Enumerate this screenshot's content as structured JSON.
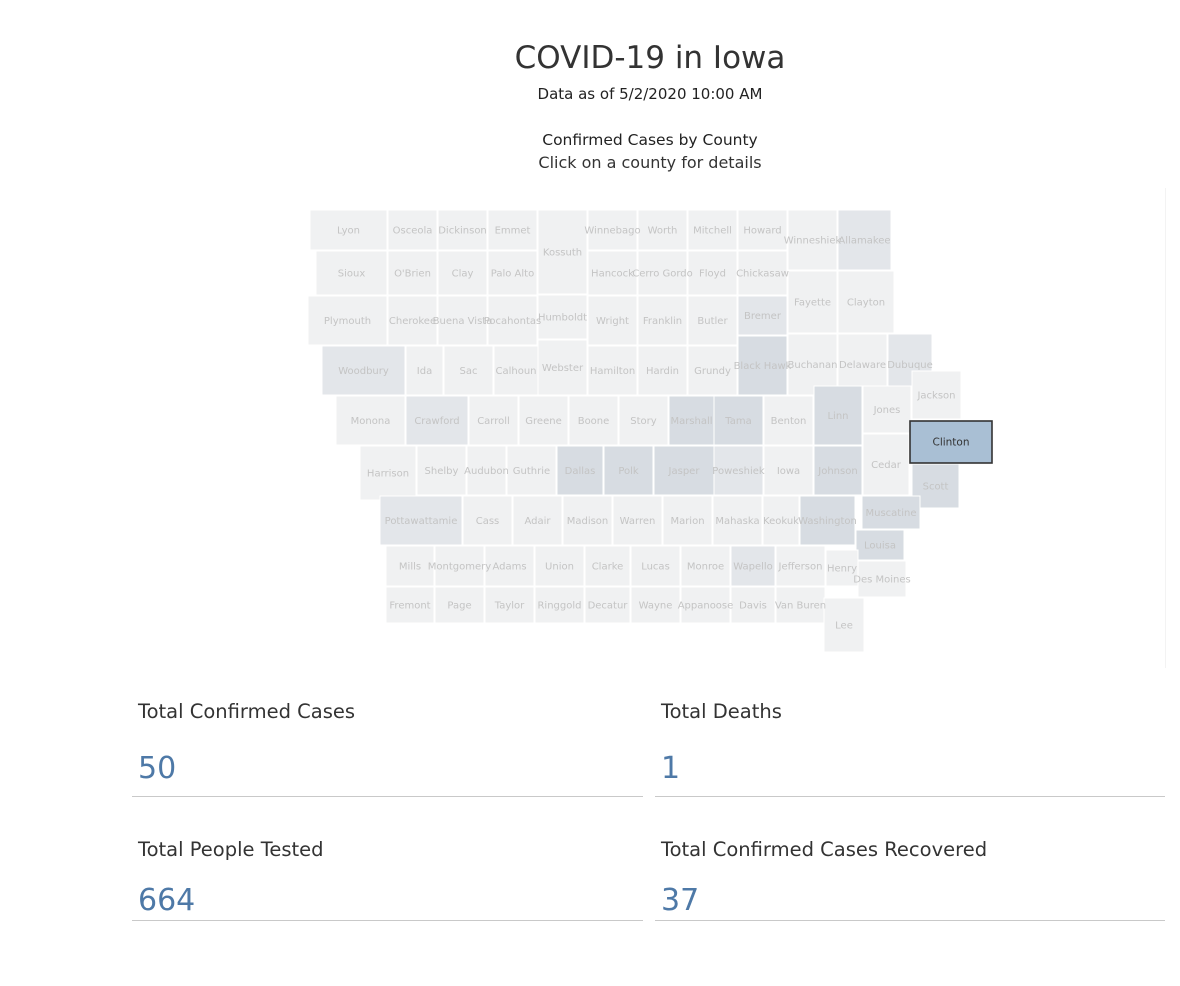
{
  "header": {
    "title": "COVID-19 in Iowa",
    "subtitle": "Data as of 5/2/2020 10:00 AM"
  },
  "map": {
    "heading": "Confirmed Cases by County",
    "instruction": "Click on a county for details",
    "selected_county": "Clinton",
    "colors": {
      "base": "#f0f1f2",
      "light": "#e3e6ea",
      "mid": "#d7dce2",
      "selected": "#a9bfd4",
      "border": "#ffffff",
      "selected_border": "#333333"
    },
    "counties": [
      {
        "name": "Lyon",
        "shade": "base"
      },
      {
        "name": "Osceola",
        "shade": "base"
      },
      {
        "name": "Dickinson",
        "shade": "base"
      },
      {
        "name": "Emmet",
        "shade": "base"
      },
      {
        "name": "Kossuth",
        "shade": "base"
      },
      {
        "name": "Winnebago",
        "shade": "base"
      },
      {
        "name": "Worth",
        "shade": "base"
      },
      {
        "name": "Mitchell",
        "shade": "base"
      },
      {
        "name": "Howard",
        "shade": "base"
      },
      {
        "name": "Winneshiek",
        "shade": "base"
      },
      {
        "name": "Allamakee",
        "shade": "light"
      },
      {
        "name": "Sioux",
        "shade": "base"
      },
      {
        "name": "O'Brien",
        "shade": "base"
      },
      {
        "name": "Clay",
        "shade": "base"
      },
      {
        "name": "Palo Alto",
        "shade": "base"
      },
      {
        "name": "Hancock",
        "shade": "base"
      },
      {
        "name": "Cerro Gordo",
        "shade": "base"
      },
      {
        "name": "Floyd",
        "shade": "base"
      },
      {
        "name": "Chickasaw",
        "shade": "base"
      },
      {
        "name": "Fayette",
        "shade": "base"
      },
      {
        "name": "Clayton",
        "shade": "base"
      },
      {
        "name": "Plymouth",
        "shade": "base"
      },
      {
        "name": "Cherokee",
        "shade": "base"
      },
      {
        "name": "Buena Vista",
        "shade": "base"
      },
      {
        "name": "Pocahontas",
        "shade": "base"
      },
      {
        "name": "Humboldt",
        "shade": "base"
      },
      {
        "name": "Wright",
        "shade": "base"
      },
      {
        "name": "Franklin",
        "shade": "base"
      },
      {
        "name": "Butler",
        "shade": "base"
      },
      {
        "name": "Bremer",
        "shade": "light"
      },
      {
        "name": "Woodbury",
        "shade": "light"
      },
      {
        "name": "Ida",
        "shade": "base"
      },
      {
        "name": "Sac",
        "shade": "base"
      },
      {
        "name": "Calhoun",
        "shade": "base"
      },
      {
        "name": "Webster",
        "shade": "base"
      },
      {
        "name": "Hamilton",
        "shade": "base"
      },
      {
        "name": "Hardin",
        "shade": "base"
      },
      {
        "name": "Grundy",
        "shade": "base"
      },
      {
        "name": "Black Hawk",
        "shade": "mid"
      },
      {
        "name": "Buchanan",
        "shade": "base"
      },
      {
        "name": "Delaware",
        "shade": "base"
      },
      {
        "name": "Dubuque",
        "shade": "light"
      },
      {
        "name": "Monona",
        "shade": "base"
      },
      {
        "name": "Crawford",
        "shade": "light"
      },
      {
        "name": "Carroll",
        "shade": "base"
      },
      {
        "name": "Greene",
        "shade": "base"
      },
      {
        "name": "Boone",
        "shade": "base"
      },
      {
        "name": "Story",
        "shade": "base"
      },
      {
        "name": "Marshall",
        "shade": "mid"
      },
      {
        "name": "Tama",
        "shade": "mid"
      },
      {
        "name": "Benton",
        "shade": "base"
      },
      {
        "name": "Linn",
        "shade": "mid"
      },
      {
        "name": "Jones",
        "shade": "base"
      },
      {
        "name": "Jackson",
        "shade": "base"
      },
      {
        "name": "Clinton",
        "shade": "selected"
      },
      {
        "name": "Harrison",
        "shade": "base"
      },
      {
        "name": "Shelby",
        "shade": "base"
      },
      {
        "name": "Audubon",
        "shade": "base"
      },
      {
        "name": "Guthrie",
        "shade": "base"
      },
      {
        "name": "Dallas",
        "shade": "mid"
      },
      {
        "name": "Polk",
        "shade": "mid"
      },
      {
        "name": "Jasper",
        "shade": "mid"
      },
      {
        "name": "Poweshiek",
        "shade": "light"
      },
      {
        "name": "Iowa",
        "shade": "base"
      },
      {
        "name": "Johnson",
        "shade": "mid"
      },
      {
        "name": "Cedar",
        "shade": "base"
      },
      {
        "name": "Scott",
        "shade": "mid"
      },
      {
        "name": "Pottawattamie",
        "shade": "light"
      },
      {
        "name": "Cass",
        "shade": "base"
      },
      {
        "name": "Adair",
        "shade": "base"
      },
      {
        "name": "Madison",
        "shade": "base"
      },
      {
        "name": "Warren",
        "shade": "base"
      },
      {
        "name": "Marion",
        "shade": "base"
      },
      {
        "name": "Mahaska",
        "shade": "base"
      },
      {
        "name": "Keokuk",
        "shade": "base"
      },
      {
        "name": "Washington",
        "shade": "mid"
      },
      {
        "name": "Louisa",
        "shade": "mid"
      },
      {
        "name": "Muscatine",
        "shade": "mid"
      },
      {
        "name": "Mills",
        "shade": "base"
      },
      {
        "name": "Montgomery",
        "shade": "base"
      },
      {
        "name": "Adams",
        "shade": "base"
      },
      {
        "name": "Union",
        "shade": "base"
      },
      {
        "name": "Clarke",
        "shade": "base"
      },
      {
        "name": "Lucas",
        "shade": "base"
      },
      {
        "name": "Monroe",
        "shade": "base"
      },
      {
        "name": "Wapello",
        "shade": "light"
      },
      {
        "name": "Jefferson",
        "shade": "base"
      },
      {
        "name": "Henry",
        "shade": "base"
      },
      {
        "name": "Des Moines",
        "shade": "base"
      },
      {
        "name": "Fremont",
        "shade": "base"
      },
      {
        "name": "Page",
        "shade": "base"
      },
      {
        "name": "Taylor",
        "shade": "base"
      },
      {
        "name": "Ringgold",
        "shade": "base"
      },
      {
        "name": "Decatur",
        "shade": "base"
      },
      {
        "name": "Wayne",
        "shade": "base"
      },
      {
        "name": "Appanoose",
        "shade": "base"
      },
      {
        "name": "Davis",
        "shade": "base"
      },
      {
        "name": "Van Buren",
        "shade": "base"
      },
      {
        "name": "Lee",
        "shade": "base"
      }
    ]
  },
  "stats": {
    "confirmed": {
      "label": "Total Confirmed Cases",
      "value": "50"
    },
    "deaths": {
      "label": "Total Deaths",
      "value": "1"
    },
    "tested": {
      "label": "Total People Tested",
      "value": "664"
    },
    "recovered": {
      "label": "Total Confirmed Cases Recovered",
      "value": "37"
    }
  }
}
